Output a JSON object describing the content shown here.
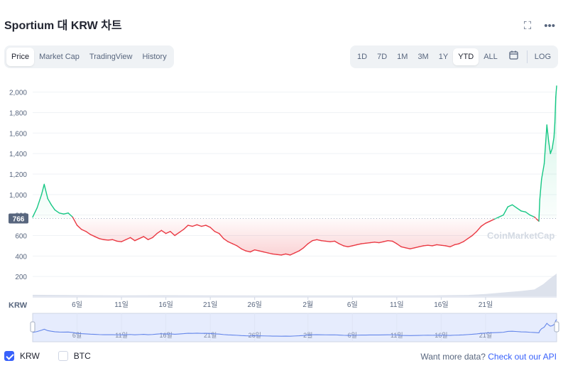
{
  "header": {
    "title": "Sportium 대 KRW 차트",
    "fullscreen_icon": "fullscreen-icon",
    "more_icon": "more-horizontal-icon"
  },
  "tabs": [
    "Price",
    "Market Cap",
    "TradingView",
    "History"
  ],
  "active_tab": "Price",
  "ranges": [
    "1D",
    "7D",
    "1M",
    "3M",
    "1Y",
    "YTD",
    "ALL"
  ],
  "active_range": "YTD",
  "log_label": "LOG",
  "calendar_icon": "calendar-icon",
  "axis_currency_label": "KRW",
  "watermark": "CoinMarketCap",
  "legend": {
    "krw": "KRW",
    "btc": "BTC"
  },
  "more_data_text": "Want more data?",
  "api_link_text": "Check out our API",
  "colors": {
    "up": "#16c784",
    "down": "#ea3943",
    "accent": "#3861fb",
    "nav_fill": "#e6ecfd",
    "nav_line": "#6486ea"
  },
  "chart_data": {
    "type": "line",
    "reference_value": 766,
    "reference_label": "766",
    "ylim": [
      0,
      2150
    ],
    "yticks": [
      200,
      400,
      600,
      800,
      1000,
      1200,
      1400,
      1600,
      1800,
      2000
    ],
    "ytick_labels": [
      "200",
      "400",
      "600",
      "800",
      "1,000",
      "1,200",
      "1,400",
      "1,600",
      "1,800",
      "2,000"
    ],
    "xlim": [
      0,
      59
    ],
    "xticks": [
      {
        "x": 5,
        "label": "6일"
      },
      {
        "x": 10,
        "label": "11일"
      },
      {
        "x": 15,
        "label": "16일"
      },
      {
        "x": 20,
        "label": "21일"
      },
      {
        "x": 25,
        "label": "26일"
      },
      {
        "x": 31,
        "label": "2월"
      },
      {
        "x": 36,
        "label": "6일"
      },
      {
        "x": 41,
        "label": "11일"
      },
      {
        "x": 46,
        "label": "16일"
      },
      {
        "x": 51,
        "label": "21일"
      }
    ],
    "series": [
      {
        "values": [
          [
            0,
            780
          ],
          [
            0.5,
            870
          ],
          [
            1,
            1000
          ],
          [
            1.3,
            1100
          ],
          [
            1.7,
            960
          ],
          [
            2.1,
            900
          ],
          [
            2.5,
            850
          ],
          [
            3,
            820
          ],
          [
            3.5,
            810
          ],
          [
            4,
            820
          ],
          [
            4.5,
            780
          ],
          [
            5,
            700
          ],
          [
            5.5,
            660
          ],
          [
            6,
            640
          ],
          [
            6.5,
            610
          ],
          [
            7,
            590
          ],
          [
            7.5,
            570
          ],
          [
            8,
            560
          ],
          [
            8.5,
            555
          ],
          [
            9,
            560
          ],
          [
            9.5,
            545
          ],
          [
            10,
            540
          ],
          [
            10.5,
            560
          ],
          [
            11,
            580
          ],
          [
            11.5,
            550
          ],
          [
            12,
            570
          ],
          [
            12.5,
            590
          ],
          [
            13,
            560
          ],
          [
            13.5,
            580
          ],
          [
            14,
            620
          ],
          [
            14.5,
            650
          ],
          [
            15,
            620
          ],
          [
            15.5,
            640
          ],
          [
            16,
            600
          ],
          [
            16.5,
            630
          ],
          [
            17,
            660
          ],
          [
            17.5,
            700
          ],
          [
            18,
            690
          ],
          [
            18.5,
            705
          ],
          [
            19,
            690
          ],
          [
            19.5,
            700
          ],
          [
            20,
            680
          ],
          [
            20.5,
            640
          ],
          [
            21,
            620
          ],
          [
            21.5,
            570
          ],
          [
            22,
            540
          ],
          [
            22.5,
            520
          ],
          [
            23,
            500
          ],
          [
            23.5,
            470
          ],
          [
            24,
            450
          ],
          [
            24.5,
            440
          ],
          [
            25,
            460
          ],
          [
            25.5,
            450
          ],
          [
            26,
            440
          ],
          [
            26.5,
            430
          ],
          [
            27,
            420
          ],
          [
            27.5,
            415
          ],
          [
            28,
            410
          ],
          [
            28.5,
            420
          ],
          [
            29,
            410
          ],
          [
            29.5,
            430
          ],
          [
            30,
            450
          ],
          [
            30.5,
            480
          ],
          [
            31,
            520
          ],
          [
            31.5,
            550
          ],
          [
            32,
            560
          ],
          [
            32.5,
            550
          ],
          [
            33,
            545
          ],
          [
            33.5,
            540
          ],
          [
            34,
            545
          ],
          [
            34.5,
            520
          ],
          [
            35,
            500
          ],
          [
            35.5,
            490
          ],
          [
            36,
            500
          ],
          [
            36.5,
            510
          ],
          [
            37,
            520
          ],
          [
            37.5,
            525
          ],
          [
            38,
            530
          ],
          [
            38.5,
            535
          ],
          [
            39,
            530
          ],
          [
            39.5,
            540
          ],
          [
            40,
            550
          ],
          [
            40.5,
            545
          ],
          [
            41,
            520
          ],
          [
            41.5,
            490
          ],
          [
            42,
            480
          ],
          [
            42.5,
            470
          ],
          [
            43,
            480
          ],
          [
            43.5,
            490
          ],
          [
            44,
            500
          ],
          [
            44.5,
            505
          ],
          [
            45,
            500
          ],
          [
            45.5,
            510
          ],
          [
            46,
            505
          ],
          [
            46.5,
            500
          ],
          [
            47,
            490
          ],
          [
            47.5,
            510
          ],
          [
            48,
            520
          ],
          [
            48.5,
            540
          ],
          [
            49,
            570
          ],
          [
            49.5,
            600
          ],
          [
            50,
            640
          ],
          [
            50.5,
            690
          ],
          [
            51,
            720
          ],
          [
            51.5,
            740
          ],
          [
            52,
            760
          ],
          [
            52.5,
            780
          ],
          [
            53,
            800
          ],
          [
            53.5,
            880
          ],
          [
            54,
            900
          ],
          [
            54.5,
            870
          ],
          [
            55,
            840
          ],
          [
            55.5,
            830
          ],
          [
            56,
            800
          ],
          [
            56.5,
            780
          ],
          [
            57,
            740
          ],
          [
            57.1,
            950
          ],
          [
            57.3,
            1150
          ],
          [
            57.6,
            1300
          ],
          [
            57.9,
            1680
          ],
          [
            58.1,
            1520
          ],
          [
            58.3,
            1400
          ],
          [
            58.5,
            1450
          ],
          [
            58.7,
            1560
          ],
          [
            58.8,
            1700
          ],
          [
            58.9,
            1950
          ],
          [
            59,
            2060
          ]
        ]
      }
    ],
    "volume": [
      [
        0,
        20
      ],
      [
        5,
        15
      ],
      [
        10,
        12
      ],
      [
        15,
        14
      ],
      [
        20,
        12
      ],
      [
        25,
        10
      ],
      [
        30,
        10
      ],
      [
        35,
        11
      ],
      [
        40,
        10
      ],
      [
        45,
        12
      ],
      [
        49,
        18
      ],
      [
        51,
        30
      ],
      [
        53,
        50
      ],
      [
        55,
        70
      ],
      [
        56.5,
        90
      ],
      [
        57.5,
        160
      ],
      [
        58.2,
        230
      ],
      [
        59,
        300
      ]
    ],
    "volume_max": 300,
    "grid": true
  }
}
